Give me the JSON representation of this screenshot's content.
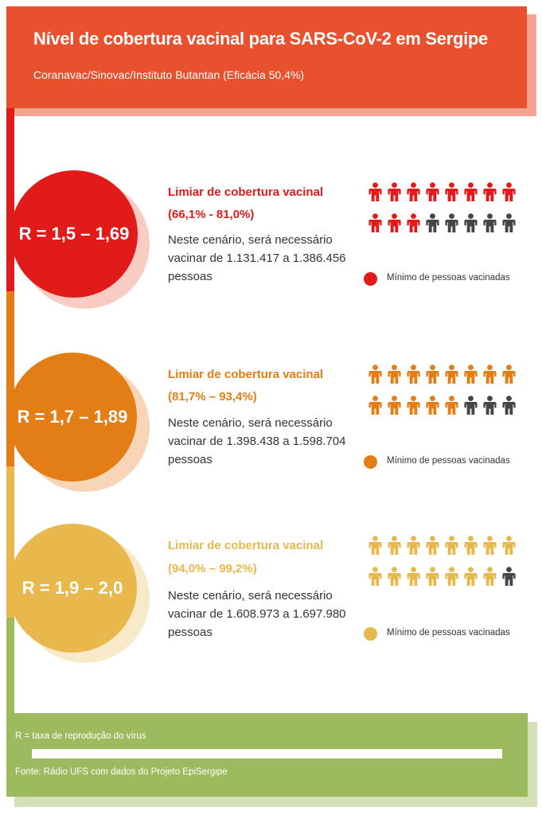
{
  "header": {
    "title": "Nível de cobertura vacinal para SARS-CoV-2 em Sergipe",
    "subtitle": "Coranavac/Sinovac/Instituto Butantan (Eficácia 50,4%)"
  },
  "scenarios": [
    {
      "r_label": "R = 1,5 – 1,69",
      "threshold_title": "Limiar de cobertura vacinal",
      "threshold_range": "(66,1% - 81,0%)",
      "description": "Neste cenário, será necessário vacinar de 1.131.417 a 1.386.456 pessoas",
      "legend": "Mínimo de pessoas vacinadas",
      "color": "#e11a1a",
      "vaccinated_icons": 11,
      "total_icons": 16
    },
    {
      "r_label": "R = 1,7 – 1,89",
      "threshold_title": "Limiar de cobertura vacinal",
      "threshold_range": "(81,7% – 93,4%)",
      "description": "Neste cenário, será necessário vacinar de 1.398.438 a 1.598.704 pessoas",
      "legend": "Mínimo de pessoas vacinadas",
      "color": "#e37d16",
      "vaccinated_icons": 13,
      "total_icons": 16
    },
    {
      "r_label": "R = 1,9 – 2,0",
      "threshold_title": "Limiar de cobertura vacinal",
      "threshold_range": "(94,0% – 99,2%)",
      "description": "Neste cenário, será necessário vacinar de 1.608.973 a 1.697.980 pessoas",
      "legend": "Mínimo de pessoas vacinadas",
      "color": "#e8b84c",
      "vaccinated_icons": 15,
      "total_icons": 16
    }
  ],
  "unvaccinated_color": "#454545",
  "footer": {
    "note": "R = taxa de reprodução do vírus",
    "source": "Fonte: Rádio UFS com dados do Projeto EpiSergipe"
  }
}
